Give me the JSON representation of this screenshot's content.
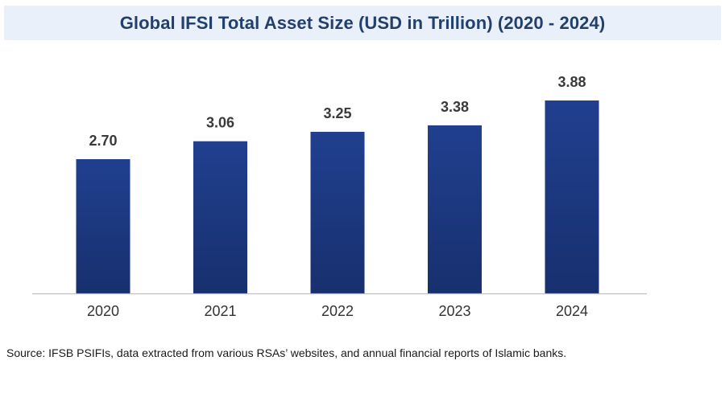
{
  "chart_data": {
    "type": "bar",
    "title": "Global IFSI Total Asset Size (USD in Trillion) (2020 - 2024)",
    "categories": [
      "2020",
      "2021",
      "2022",
      "2023",
      "2024"
    ],
    "values": [
      2.7,
      3.06,
      3.25,
      3.38,
      3.88
    ],
    "value_labels": [
      "2.70",
      "3.06",
      "3.25",
      "3.38",
      "3.88"
    ],
    "xlabel": "",
    "ylabel": "",
    "ylim": [
      0,
      4.5
    ],
    "grid": false,
    "legend": "none",
    "bar_color": "#203f8f",
    "bar_color_dark": "#17306e"
  },
  "source_note": "Source: IFSB PSIFIs, data extracted from various RSAs’ websites, and annual financial reports of Islamic banks."
}
